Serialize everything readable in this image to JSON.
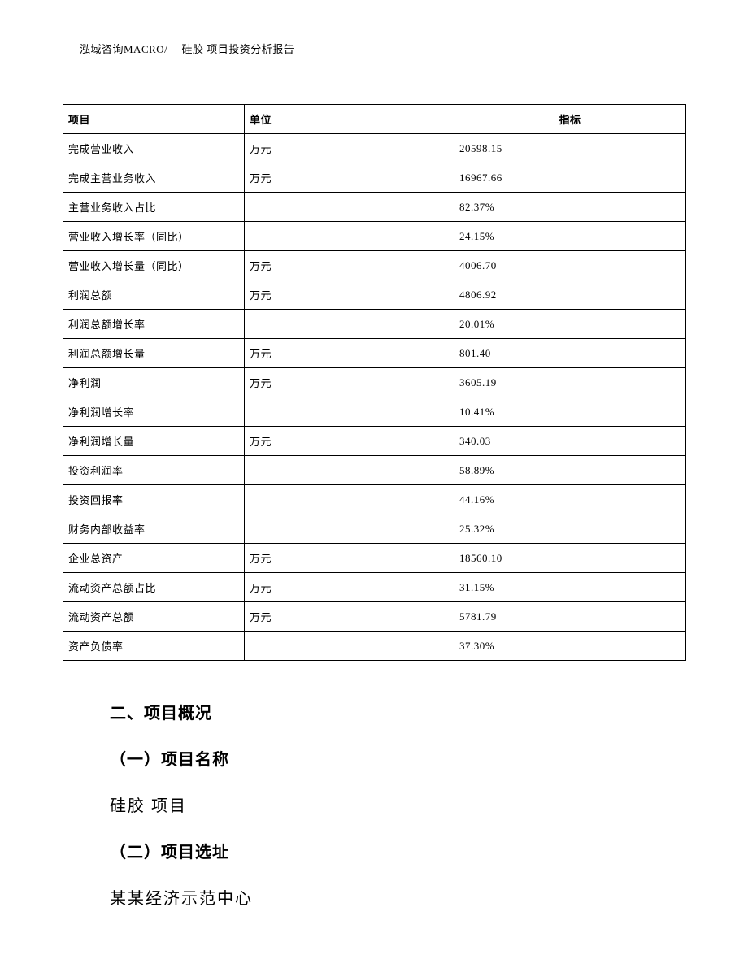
{
  "header": {
    "text": "泓域咨询MACRO/　 硅胶 项目投资分析报告"
  },
  "table": {
    "columns": {
      "col1": "项目",
      "col2": "单位",
      "col3": "指标"
    },
    "rows": [
      {
        "name": "完成营业收入",
        "unit": "万元",
        "value": "20598.15"
      },
      {
        "name": "完成主营业务收入",
        "unit": "万元",
        "value": "16967.66"
      },
      {
        "name": "主营业务收入占比",
        "unit": "",
        "value": "82.37%"
      },
      {
        "name": "营业收入增长率（同比）",
        "unit": "",
        "value": "24.15%"
      },
      {
        "name": "营业收入增长量（同比）",
        "unit": "万元",
        "value": "4006.70"
      },
      {
        "name": "利润总额",
        "unit": "万元",
        "value": "4806.92"
      },
      {
        "name": "利润总额增长率",
        "unit": "",
        "value": "20.01%"
      },
      {
        "name": "利润总额增长量",
        "unit": "万元",
        "value": "801.40"
      },
      {
        "name": "净利润",
        "unit": "万元",
        "value": "3605.19"
      },
      {
        "name": "净利润增长率",
        "unit": "",
        "value": "10.41%"
      },
      {
        "name": "净利润增长量",
        "unit": "万元",
        "value": "340.03"
      },
      {
        "name": "投资利润率",
        "unit": "",
        "value": "58.89%"
      },
      {
        "name": "投资回报率",
        "unit": "",
        "value": "44.16%"
      },
      {
        "name": "财务内部收益率",
        "unit": "",
        "value": "25.32%"
      },
      {
        "name": "企业总资产",
        "unit": "万元",
        "value": "18560.10"
      },
      {
        "name": "流动资产总额占比",
        "unit": "万元",
        "value": "31.15%"
      },
      {
        "name": "流动资产总额",
        "unit": "万元",
        "value": "5781.79"
      },
      {
        "name": "资产负债率",
        "unit": "",
        "value": "37.30%"
      }
    ]
  },
  "sections": {
    "main_heading": "二、项目概况",
    "sub1_heading": "（一）项目名称",
    "sub1_text": "硅胶 项目",
    "sub2_heading": "（二）项目选址",
    "sub2_text": "某某经济示范中心"
  }
}
